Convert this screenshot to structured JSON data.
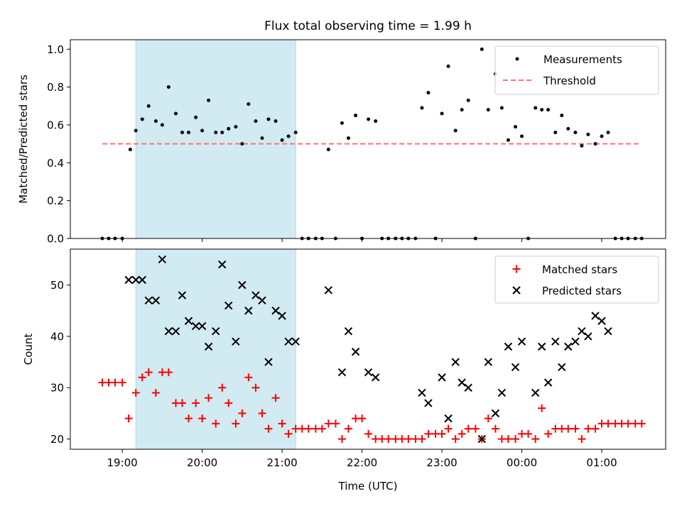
{
  "chart_data": [
    {
      "type": "scatter",
      "title": "Flux total observing time = 1.99 h",
      "xlabel": "",
      "ylabel": "Matched/Predicted stars",
      "ylim": [
        0,
        1.05
      ],
      "yticks": [
        "0.0",
        "0.2",
        "0.4",
        "0.6",
        "0.8",
        "1.0"
      ],
      "xticks": [
        "19:00",
        "20:00",
        "21:00",
        "22:00",
        "23:00",
        "00:00",
        "01:00"
      ],
      "x_unit": "hours UTC (values past 24 are after midnight)",
      "xlim": [
        18.35,
        25.8
      ],
      "highlight_span": [
        19.17,
        21.17
      ],
      "highlight_color": "#add8e6",
      "legend_position": "upper right",
      "threshold": {
        "name": "Threshold",
        "value": 0.5,
        "x_range": [
          18.75,
          25.47
        ],
        "color": "#ff7070"
      },
      "series": [
        {
          "name": "Measurements",
          "color": "#000000",
          "points": [
            [
              18.75,
              0.0
            ],
            [
              18.83,
              0.0
            ],
            [
              18.91,
              0.0
            ],
            [
              19.0,
              0.0
            ],
            [
              19.1,
              0.47
            ],
            [
              19.17,
              0.57
            ],
            [
              19.25,
              0.63
            ],
            [
              19.33,
              0.7
            ],
            [
              19.42,
              0.62
            ],
            [
              19.5,
              0.6
            ],
            [
              19.58,
              0.8
            ],
            [
              19.67,
              0.66
            ],
            [
              19.75,
              0.56
            ],
            [
              19.83,
              0.56
            ],
            [
              19.92,
              0.64
            ],
            [
              20.0,
              0.57
            ],
            [
              20.08,
              0.73
            ],
            [
              20.17,
              0.56
            ],
            [
              20.25,
              0.56
            ],
            [
              20.33,
              0.58
            ],
            [
              20.42,
              0.59
            ],
            [
              20.5,
              0.5
            ],
            [
              20.58,
              0.71
            ],
            [
              20.67,
              0.62
            ],
            [
              20.75,
              0.53
            ],
            [
              20.83,
              0.63
            ],
            [
              20.92,
              0.62
            ],
            [
              21.0,
              0.52
            ],
            [
              21.08,
              0.54
            ],
            [
              21.17,
              0.56
            ],
            [
              21.25,
              0.0
            ],
            [
              21.33,
              0.0
            ],
            [
              21.42,
              0.0
            ],
            [
              21.5,
              0.0
            ],
            [
              21.58,
              0.47
            ],
            [
              21.67,
              0.0
            ],
            [
              21.75,
              0.61
            ],
            [
              21.83,
              0.53
            ],
            [
              21.92,
              0.65
            ],
            [
              22.0,
              0.0
            ],
            [
              22.08,
              0.63
            ],
            [
              22.17,
              0.62
            ],
            [
              22.25,
              0.0
            ],
            [
              22.33,
              0.0
            ],
            [
              22.42,
              0.0
            ],
            [
              22.5,
              0.0
            ],
            [
              22.58,
              0.0
            ],
            [
              22.67,
              0.0
            ],
            [
              22.75,
              0.69
            ],
            [
              22.83,
              0.77
            ],
            [
              22.92,
              0.0
            ],
            [
              23.0,
              0.66
            ],
            [
              23.08,
              0.91
            ],
            [
              23.17,
              0.57
            ],
            [
              23.25,
              0.68
            ],
            [
              23.33,
              0.73
            ],
            [
              23.42,
              0.0
            ],
            [
              23.5,
              1.0
            ],
            [
              23.58,
              0.68
            ],
            [
              23.67,
              0.87
            ],
            [
              23.75,
              0.69
            ],
            [
              23.83,
              0.52
            ],
            [
              23.92,
              0.59
            ],
            [
              24.0,
              0.54
            ],
            [
              24.08,
              0.0
            ],
            [
              24.17,
              0.69
            ],
            [
              24.25,
              0.68
            ],
            [
              24.33,
              0.68
            ],
            [
              24.42,
              0.56
            ],
            [
              24.5,
              0.65
            ],
            [
              24.58,
              0.58
            ],
            [
              24.67,
              0.56
            ],
            [
              24.75,
              0.49
            ],
            [
              24.83,
              0.55
            ],
            [
              24.92,
              0.5
            ],
            [
              25.0,
              0.54
            ],
            [
              25.08,
              0.56
            ],
            [
              25.17,
              0.0
            ],
            [
              25.25,
              0.0
            ],
            [
              25.33,
              0.0
            ],
            [
              25.42,
              0.0
            ],
            [
              25.5,
              0.0
            ]
          ]
        }
      ]
    },
    {
      "type": "scatter",
      "title": "",
      "xlabel": "Time (UTC)",
      "ylabel": "Count",
      "ylim": [
        18,
        57
      ],
      "yticks": [
        "20",
        "30",
        "40",
        "50"
      ],
      "xticks": [
        "19:00",
        "20:00",
        "21:00",
        "22:00",
        "23:00",
        "00:00",
        "01:00"
      ],
      "x_unit": "hours UTC (values past 24 are after midnight)",
      "xlim": [
        18.35,
        25.8
      ],
      "highlight_span": [
        19.17,
        21.17
      ],
      "highlight_color": "#add8e6",
      "legend_position": "upper right",
      "series": [
        {
          "name": "Matched stars",
          "color": "#ff0000",
          "marker": "+",
          "points": [
            [
              18.75,
              31
            ],
            [
              18.83,
              31
            ],
            [
              18.91,
              31
            ],
            [
              19.0,
              31
            ],
            [
              19.08,
              24
            ],
            [
              19.17,
              29
            ],
            [
              19.25,
              32
            ],
            [
              19.33,
              33
            ],
            [
              19.42,
              29
            ],
            [
              19.5,
              33
            ],
            [
              19.58,
              33
            ],
            [
              19.67,
              27
            ],
            [
              19.75,
              27
            ],
            [
              19.83,
              24
            ],
            [
              19.92,
              27
            ],
            [
              20.0,
              24
            ],
            [
              20.08,
              28
            ],
            [
              20.17,
              23
            ],
            [
              20.25,
              30
            ],
            [
              20.33,
              27
            ],
            [
              20.42,
              23
            ],
            [
              20.5,
              25
            ],
            [
              20.58,
              32
            ],
            [
              20.67,
              30
            ],
            [
              20.75,
              25
            ],
            [
              20.83,
              22
            ],
            [
              20.92,
              28
            ],
            [
              21.0,
              23
            ],
            [
              21.08,
              21
            ],
            [
              21.17,
              22
            ],
            [
              21.25,
              22
            ],
            [
              21.33,
              22
            ],
            [
              21.42,
              22
            ],
            [
              21.5,
              22
            ],
            [
              21.58,
              23
            ],
            [
              21.67,
              23
            ],
            [
              21.75,
              20
            ],
            [
              21.83,
              22
            ],
            [
              21.92,
              24
            ],
            [
              22.0,
              24
            ],
            [
              22.08,
              21
            ],
            [
              22.17,
              20
            ],
            [
              22.25,
              20
            ],
            [
              22.33,
              20
            ],
            [
              22.42,
              20
            ],
            [
              22.5,
              20
            ],
            [
              22.58,
              20
            ],
            [
              22.67,
              20
            ],
            [
              22.75,
              20
            ],
            [
              22.83,
              21
            ],
            [
              22.92,
              21
            ],
            [
              23.0,
              21
            ],
            [
              23.08,
              22
            ],
            [
              23.17,
              20
            ],
            [
              23.25,
              21
            ],
            [
              23.33,
              22
            ],
            [
              23.42,
              22
            ],
            [
              23.5,
              20
            ],
            [
              23.58,
              24
            ],
            [
              23.67,
              22
            ],
            [
              23.75,
              20
            ],
            [
              23.83,
              20
            ],
            [
              23.92,
              20
            ],
            [
              24.0,
              21
            ],
            [
              24.08,
              21
            ],
            [
              24.17,
              20
            ],
            [
              24.25,
              26
            ],
            [
              24.33,
              21
            ],
            [
              24.42,
              22
            ],
            [
              24.5,
              22
            ],
            [
              24.58,
              22
            ],
            [
              24.67,
              22
            ],
            [
              24.75,
              20
            ],
            [
              24.83,
              22
            ],
            [
              24.92,
              22
            ],
            [
              25.0,
              23
            ],
            [
              25.08,
              23
            ],
            [
              25.17,
              23
            ],
            [
              25.25,
              23
            ],
            [
              25.33,
              23
            ],
            [
              25.42,
              23
            ],
            [
              25.5,
              23
            ]
          ]
        },
        {
          "name": "Predicted stars",
          "color": "#000000",
          "marker": "x",
          "points": [
            [
              19.08,
              51
            ],
            [
              19.17,
              51
            ],
            [
              19.25,
              51
            ],
            [
              19.33,
              47
            ],
            [
              19.42,
              47
            ],
            [
              19.5,
              55
            ],
            [
              19.58,
              41
            ],
            [
              19.67,
              41
            ],
            [
              19.75,
              48
            ],
            [
              19.83,
              43
            ],
            [
              19.92,
              42
            ],
            [
              20.0,
              42
            ],
            [
              20.08,
              38
            ],
            [
              20.17,
              41
            ],
            [
              20.25,
              54
            ],
            [
              20.33,
              46
            ],
            [
              20.42,
              39
            ],
            [
              20.5,
              50
            ],
            [
              20.58,
              45
            ],
            [
              20.67,
              48
            ],
            [
              20.75,
              47
            ],
            [
              20.83,
              35
            ],
            [
              20.92,
              45
            ],
            [
              21.0,
              44
            ],
            [
              21.08,
              39
            ],
            [
              21.17,
              39
            ],
            [
              21.58,
              49
            ],
            [
              21.75,
              33
            ],
            [
              21.83,
              41
            ],
            [
              21.92,
              37
            ],
            [
              22.08,
              33
            ],
            [
              22.17,
              32
            ],
            [
              22.75,
              29
            ],
            [
              22.83,
              27
            ],
            [
              23.0,
              32
            ],
            [
              23.08,
              24
            ],
            [
              23.17,
              35
            ],
            [
              23.25,
              31
            ],
            [
              23.33,
              30
            ],
            [
              23.5,
              20
            ],
            [
              23.58,
              35
            ],
            [
              23.67,
              25
            ],
            [
              23.75,
              29
            ],
            [
              23.83,
              38
            ],
            [
              23.92,
              34
            ],
            [
              24.0,
              39
            ],
            [
              24.17,
              29
            ],
            [
              24.25,
              38
            ],
            [
              24.33,
              31
            ],
            [
              24.42,
              39
            ],
            [
              24.5,
              34
            ],
            [
              24.58,
              38
            ],
            [
              24.67,
              39
            ],
            [
              24.75,
              41
            ],
            [
              24.83,
              40
            ],
            [
              24.92,
              44
            ],
            [
              25.0,
              43
            ],
            [
              25.08,
              41
            ]
          ]
        }
      ]
    }
  ]
}
